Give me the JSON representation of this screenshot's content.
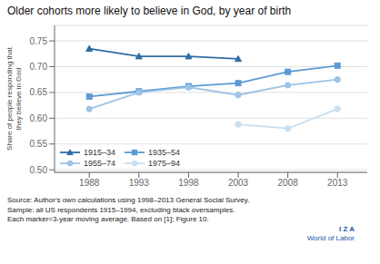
{
  "chart_data": {
    "type": "line",
    "title": "Older cohorts more likely to believe in God, by year of birth",
    "y_label": "Share of people responding that\nthey believe in God",
    "x": [
      1988,
      1993,
      1998,
      2003,
      2008,
      2013
    ],
    "xlim": [
      1984.5,
      2016
    ],
    "xticks": [
      1988,
      1993,
      1998,
      2003,
      2008,
      2013
    ],
    "ylim": [
      0.495,
      0.78
    ],
    "yticks": [
      {
        "value": 0.5,
        "label": "0.50"
      },
      0.55,
      {
        "value": 0.6,
        "label": "0.60"
      },
      0.65,
      {
        "value": 0.7,
        "label": "0.70"
      },
      0.75
    ],
    "grid": true,
    "legend": "lower left",
    "series": [
      {
        "name": "1915–34",
        "color": "#2E6DA4",
        "marker": "triangle",
        "line_style": "solid",
        "values": [
          0.735,
          0.72,
          0.72,
          0.715,
          null,
          null
        ]
      },
      {
        "name": "1935–54",
        "color": "#5B9BD5",
        "marker": "square",
        "line_style": "solid",
        "values": [
          0.642,
          0.652,
          0.662,
          0.668,
          0.69,
          0.702
        ]
      },
      {
        "name": "1955–74",
        "color": "#9DC3E6",
        "marker": "circle",
        "line_style": "solid",
        "values": [
          0.618,
          0.65,
          0.66,
          0.645,
          0.664,
          0.675
        ]
      },
      {
        "name": "1975–94",
        "color": "#C8DFF0",
        "marker": "circle",
        "line_style": "solid",
        "values": [
          null,
          null,
          null,
          0.588,
          0.58,
          0.618
        ]
      }
    ],
    "annotations": [
      "Source: Author's own calculations using 1998–2013 General Social Survey.",
      "Sample: all US respondents 1915–1994, excluding black oversamples.",
      "Each marker=3-year moving average. Based on [1]; Figure 10.",
      "I Z A",
      "World of Labor"
    ]
  }
}
